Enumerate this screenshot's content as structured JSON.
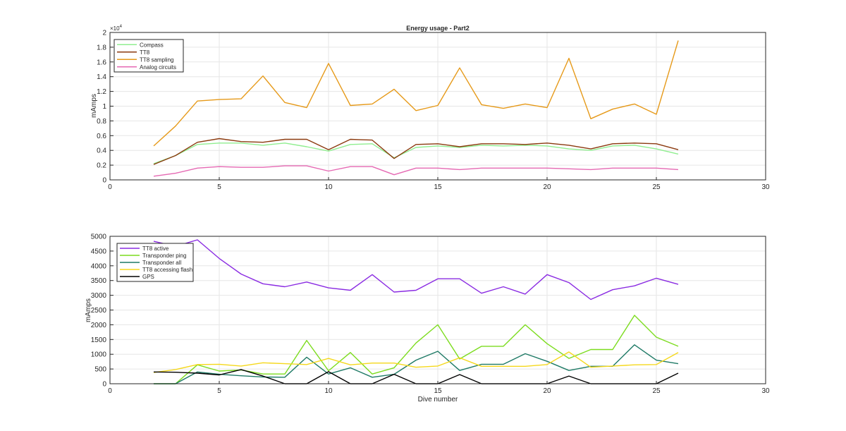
{
  "chart_data": [
    {
      "type": "line",
      "title": "Energy usage - Part2",
      "xlabel": "",
      "ylabel": "mAmps",
      "exponent_label": "×10",
      "exponent_power": "4",
      "xlim": [
        0,
        30
      ],
      "ylim": [
        0,
        20000
      ],
      "xticks": [
        0,
        5,
        10,
        15,
        20,
        25,
        30
      ],
      "xtick_labels": [
        "0",
        "5",
        "10",
        "15",
        "20",
        "25",
        "30"
      ],
      "yticks": [
        0,
        2000,
        4000,
        6000,
        8000,
        10000,
        12000,
        14000,
        16000,
        18000,
        20000
      ],
      "ytick_labels": [
        "0",
        "0.2",
        "0.4",
        "0.6",
        "0.8",
        "1",
        "1.2",
        "1.4",
        "1.6",
        "1.8",
        "2"
      ],
      "grid": true,
      "legend_position": "top-left",
      "x": [
        2,
        3,
        4,
        5,
        6,
        7,
        8,
        9,
        10,
        11,
        12,
        13,
        14,
        15,
        16,
        17,
        18,
        19,
        20,
        21,
        22,
        23,
        24,
        25,
        26
      ],
      "series": [
        {
          "name": "Compass",
          "color": "#90ee90",
          "values": [
            2200,
            3300,
            4800,
            5000,
            5000,
            4700,
            5000,
            4500,
            3900,
            4800,
            4900,
            3000,
            4400,
            4600,
            4400,
            4700,
            4600,
            4700,
            4600,
            4200,
            4000,
            4600,
            4700,
            4200,
            3500
          ]
        },
        {
          "name": "TT8",
          "color": "#8b3a0f",
          "values": [
            2100,
            3300,
            5100,
            5600,
            5200,
            5100,
            5500,
            5500,
            4100,
            5500,
            5400,
            2900,
            4800,
            4900,
            4500,
            4900,
            4900,
            4800,
            5000,
            4700,
            4200,
            4900,
            5000,
            4900,
            4100
          ]
        },
        {
          "name": "TT8 sampling",
          "color": "#e69a1a",
          "values": [
            4600,
            7300,
            10700,
            10900,
            11000,
            14100,
            10500,
            9800,
            15800,
            10100,
            10300,
            12300,
            9400,
            10100,
            15200,
            10200,
            9700,
            10300,
            9800,
            16500,
            8300,
            9600,
            10300,
            8900,
            18900
          ]
        },
        {
          "name": "Analog circuits",
          "color": "#e569b3",
          "values": [
            500,
            900,
            1600,
            1800,
            1700,
            1700,
            1900,
            1900,
            1200,
            1800,
            1800,
            700,
            1600,
            1600,
            1400,
            1600,
            1600,
            1600,
            1600,
            1500,
            1400,
            1600,
            1600,
            1600,
            1400
          ]
        }
      ]
    },
    {
      "type": "line",
      "title": "",
      "xlabel": "Dive number",
      "ylabel": "mAmps",
      "xlim": [
        0,
        30
      ],
      "ylim": [
        0,
        5000
      ],
      "xticks": [
        0,
        5,
        10,
        15,
        20,
        25,
        30
      ],
      "xtick_labels": [
        "0",
        "5",
        "10",
        "15",
        "20",
        "25",
        "30"
      ],
      "yticks": [
        0,
        500,
        1000,
        1500,
        2000,
        2500,
        3000,
        3500,
        4000,
        4500,
        5000
      ],
      "ytick_labels": [
        "0",
        "500",
        "1000",
        "1500",
        "2000",
        "2500",
        "3000",
        "3500",
        "4000",
        "4500",
        "5000"
      ],
      "grid": true,
      "legend_position": "top-left",
      "x": [
        2,
        3,
        4,
        5,
        6,
        7,
        8,
        9,
        10,
        11,
        12,
        13,
        14,
        15,
        16,
        17,
        18,
        19,
        20,
        21,
        22,
        23,
        24,
        25,
        26
      ],
      "series": [
        {
          "name": "TT8 active",
          "color": "#8a2be2",
          "values": [
            4830,
            4660,
            4880,
            4250,
            3720,
            3390,
            3290,
            3450,
            3250,
            3170,
            3700,
            3110,
            3170,
            3560,
            3560,
            3070,
            3290,
            3040,
            3700,
            3430,
            2860,
            3190,
            3320,
            3580,
            3370
          ]
        },
        {
          "name": "Transponder ping",
          "color": "#7cdc1e",
          "values": [
            0,
            0,
            640,
            430,
            470,
            330,
            330,
            1470,
            440,
            1060,
            330,
            540,
            1380,
            2000,
            840,
            1270,
            1270,
            2000,
            1360,
            860,
            1160,
            1160,
            2320,
            1580,
            1270
          ]
        },
        {
          "name": "Transponder all",
          "color": "#1f7a66",
          "values": [
            0,
            0,
            400,
            320,
            270,
            230,
            220,
            900,
            330,
            540,
            220,
            320,
            800,
            1100,
            450,
            660,
            660,
            1020,
            760,
            450,
            590,
            590,
            1320,
            800,
            680
          ]
        },
        {
          "name": "TT8 accessing flash",
          "color": "#f5d81c",
          "values": [
            380,
            480,
            650,
            660,
            600,
            710,
            680,
            650,
            860,
            640,
            700,
            700,
            560,
            600,
            880,
            590,
            590,
            590,
            650,
            1080,
            560,
            600,
            640,
            650,
            1060
          ]
        },
        {
          "name": "GPS",
          "color": "#000000",
          "values": [
            400,
            390,
            360,
            300,
            480,
            260,
            0,
            0,
            410,
            0,
            0,
            320,
            0,
            0,
            310,
            0,
            0,
            0,
            0,
            260,
            0,
            0,
            0,
            0,
            360
          ]
        }
      ]
    }
  ]
}
